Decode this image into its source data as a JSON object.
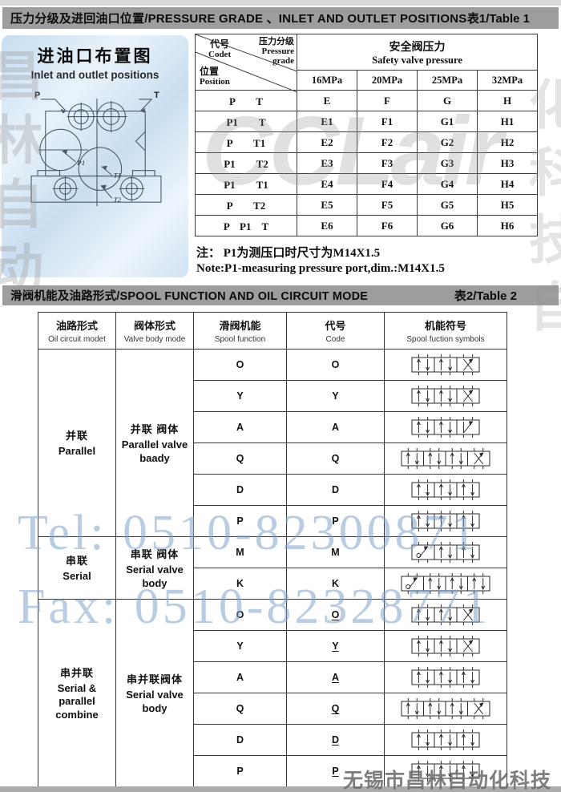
{
  "header1": {
    "title": "压力分级及进回油口位置/PRESSURE GRADE 、INLET AND OUTLET POSITIONS",
    "ref": "表1/Table 1"
  },
  "drawing": {
    "title": "进油口布置图",
    "subtitle": "Inlet and outlet positions",
    "labels": {
      "p": "P",
      "t": "T",
      "p1": "P1",
      "t1": "T1",
      "t2": "T2"
    }
  },
  "table1": {
    "corner": {
      "code_cn": "代号",
      "code_en": "Codet",
      "grade_cn": "压力分级",
      "grade_en": "Pressure\ngrade",
      "pos_cn": "位置",
      "pos_en": "Position"
    },
    "safety": {
      "cn": "安全阀压力",
      "en": "Safety valve pressure"
    },
    "cols": [
      "16MPa",
      "20MPa",
      "25MPa",
      "32MPa"
    ],
    "rows": [
      {
        "pos": "P　　T",
        "c0": "E",
        "c1": "F",
        "c2": "G",
        "c3": "H"
      },
      {
        "pos": "P1　　T",
        "c0": "E1",
        "c1": "F1",
        "c2": "G1",
        "c3": "H1"
      },
      {
        "pos": "P　　T1",
        "c0": "E2",
        "c1": "F2",
        "c2": "G2",
        "c3": "H2"
      },
      {
        "pos": "P1　　T2",
        "c0": "E3",
        "c1": "F3",
        "c2": "G3",
        "c3": "H3"
      },
      {
        "pos": "P1　　T1",
        "c0": "E4",
        "c1": "F4",
        "c2": "G4",
        "c3": "H4"
      },
      {
        "pos": "P　　T2",
        "c0": "E5",
        "c1": "F5",
        "c2": "G5",
        "c3": "H5"
      },
      {
        "pos": "P　P1　T",
        "c0": "E6",
        "c1": "F6",
        "c2": "G6",
        "c3": "H6"
      }
    ],
    "note_cn": "注： P1为测压口时尺寸为M14X1.5",
    "note_en": "Note:P1-measuring pressure port,dim.:M14X1.5"
  },
  "header2": {
    "title": "滑阀机能及油路形式/SPOOL FUNCTION AND OIL CIRCUIT MODE",
    "ref": "表2/Table 2"
  },
  "table2": {
    "head": {
      "c1_cn": "油路形式",
      "c1_en": "Oil circuit modet",
      "c2_cn": "阀体形式",
      "c2_en": "Valve body mode",
      "c3_cn": "滑阀机能",
      "c3_en": "Spool function",
      "c4_cn": "代号",
      "c4_en": "Code",
      "c5_cn": "机能符号",
      "c5_en": "Spool fuction symbols"
    },
    "groups": [
      {
        "circuit_cn": "并联",
        "circuit_en": "Parallel",
        "body_cn": "并联 阀体",
        "body_en": "Parallel valve\nbaady",
        "rows": [
          {
            "fn": "O",
            "code": "O",
            "sym": "x"
          },
          {
            "fn": "Y",
            "code": "Y",
            "sym": "x"
          },
          {
            "fn": "A",
            "code": "A",
            "sym": "slash-r"
          },
          {
            "fn": "Q",
            "code": "Q",
            "sym": "wide-x"
          },
          {
            "fn": "D",
            "code": "D",
            "sym": "plain"
          },
          {
            "fn": "P",
            "code": "P",
            "sym": "plain"
          }
        ]
      },
      {
        "circuit_cn": "串联",
        "circuit_en": "Serial",
        "body_cn": "串联 阀体",
        "body_en": "Serial valve\nbody",
        "rows": [
          {
            "fn": "M",
            "code": "M",
            "sym": "slash-l"
          },
          {
            "fn": "K",
            "code": "K",
            "sym": "slash-l-wide"
          }
        ]
      },
      {
        "circuit_cn": "串并联",
        "circuit_en": "Serial & parallel\ncombine",
        "body_cn": "串并联阀体",
        "body_en": "Serial valve\nbody",
        "rows": [
          {
            "fn": "O",
            "code": "O",
            "sym": "x"
          },
          {
            "fn": "Y",
            "code": "Y",
            "sym": "x"
          },
          {
            "fn": "A",
            "code": "A",
            "sym": "plain"
          },
          {
            "fn": "Q",
            "code": "Q",
            "sym": "wide-x"
          },
          {
            "fn": "D",
            "code": "D",
            "sym": "plain"
          },
          {
            "fn": "P",
            "code": "P",
            "sym": "plain"
          }
        ]
      }
    ]
  },
  "watermarks": {
    "logo": "CCLair",
    "left_glyphs": "昌林自动",
    "right_glyphs": "化科技自",
    "tel": "Tel: 0510-82300871",
    "fax": "Fax: 0510-82328771",
    "company": "无锡市昌林自动化科技"
  },
  "colors": {
    "header_bar": "#9d9d9d",
    "panel_blue": "#cfe3f4",
    "watermark_blue": "#80a2cb"
  }
}
